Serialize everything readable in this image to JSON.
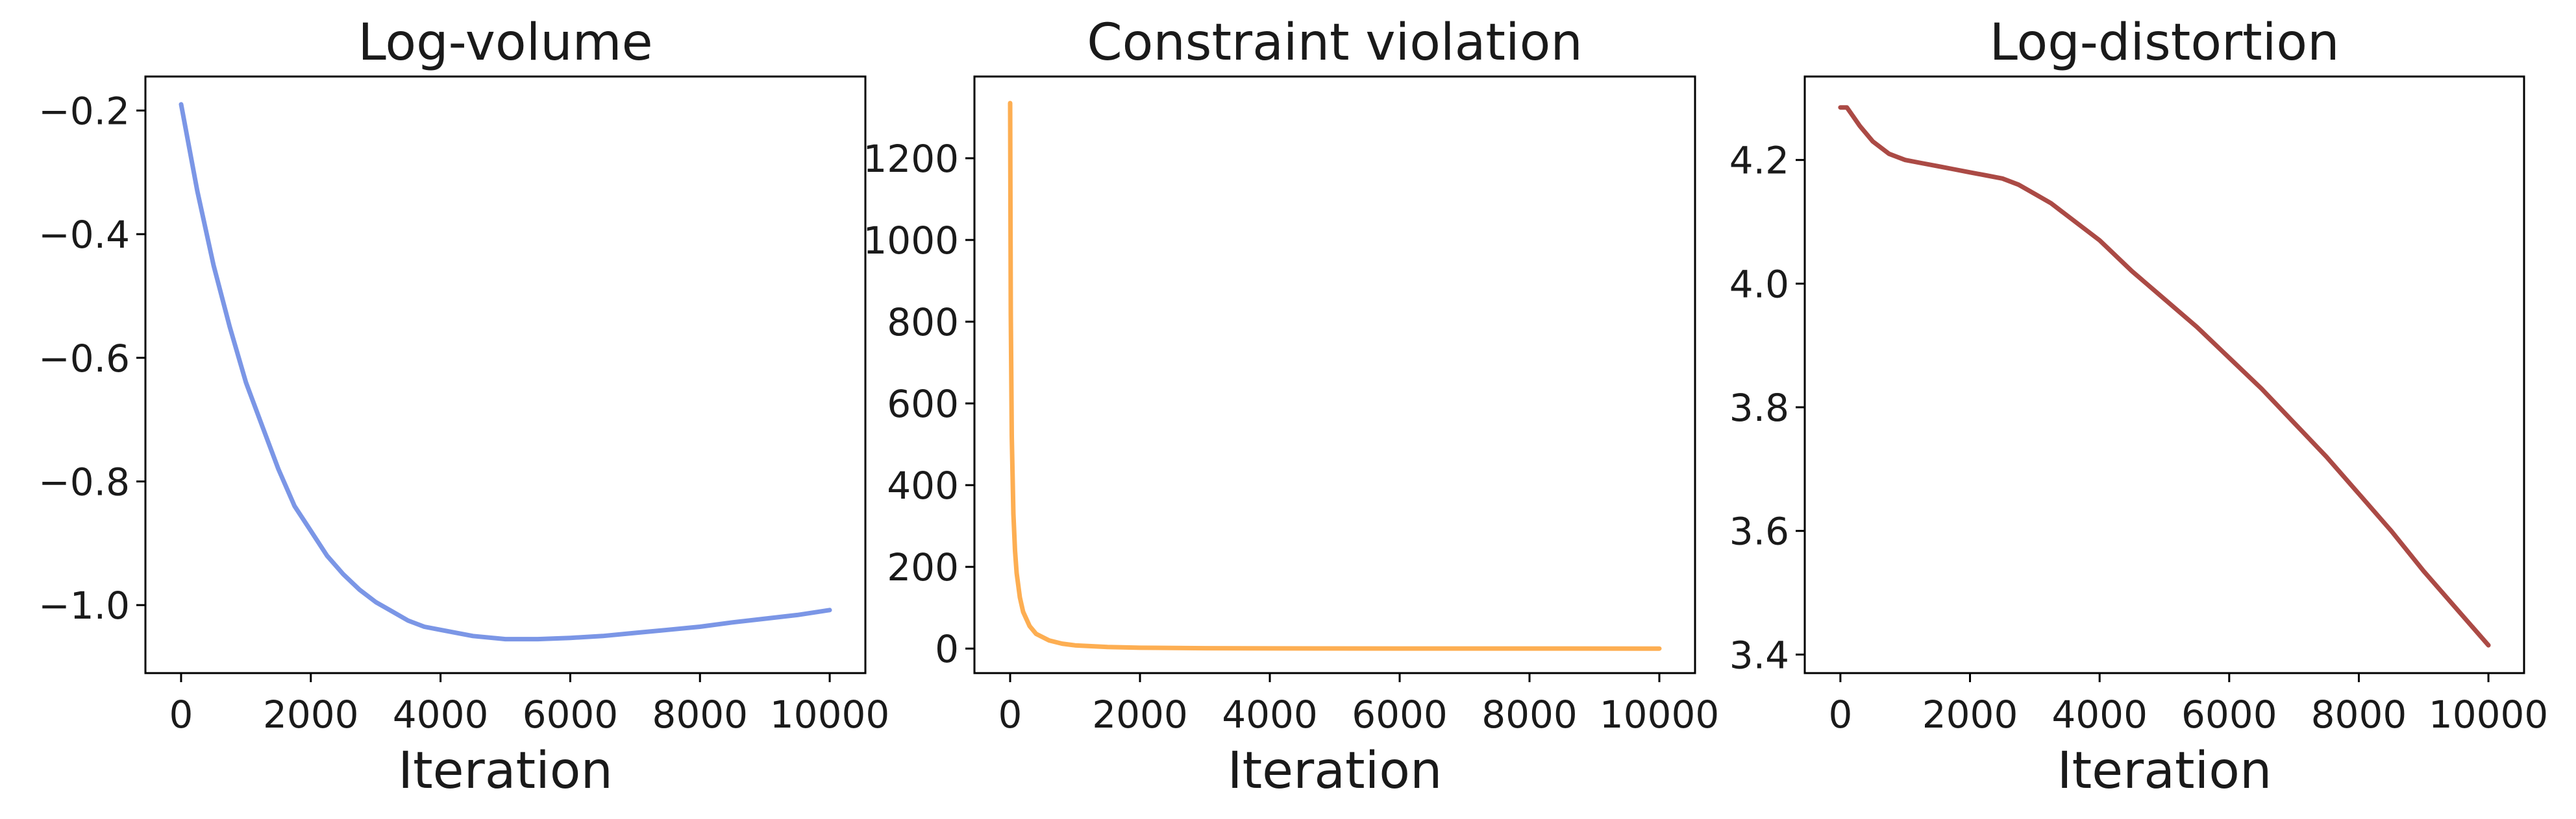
{
  "chart_data": [
    {
      "type": "line",
      "title": "Log-volume",
      "xlabel": "Iteration",
      "ylabel": "",
      "xlim": [
        -550,
        10550
      ],
      "ylim": [
        -1.11,
        -0.145
      ],
      "xticks": [
        0,
        2000,
        4000,
        6000,
        8000,
        10000
      ],
      "xtick_labels": [
        "0",
        "2000",
        "4000",
        "6000",
        "8000",
        "10000"
      ],
      "yticks": [
        -1.0,
        -0.8,
        -0.6,
        -0.4,
        -0.2
      ],
      "ytick_labels": [
        "−1.0",
        "−0.8",
        "−0.6",
        "−0.4",
        "−0.2"
      ],
      "grid": false,
      "series": [
        {
          "color": "#7b96e6",
          "x": [
            0,
            250,
            500,
            750,
            1000,
            1250,
            1500,
            1750,
            2000,
            2250,
            2500,
            2750,
            3000,
            3250,
            3500,
            3750,
            4000,
            4500,
            5000,
            5500,
            6000,
            6500,
            7000,
            7500,
            8000,
            8500,
            9000,
            9500,
            10000
          ],
          "y": [
            -0.19,
            -0.33,
            -0.45,
            -0.55,
            -0.64,
            -0.71,
            -0.78,
            -0.84,
            -0.88,
            -0.92,
            -0.95,
            -0.975,
            -0.995,
            -1.01,
            -1.025,
            -1.035,
            -1.04,
            -1.05,
            -1.055,
            -1.055,
            -1.053,
            -1.05,
            -1.045,
            -1.04,
            -1.035,
            -1.028,
            -1.022,
            -1.016,
            -1.008
          ]
        }
      ]
    },
    {
      "type": "line",
      "title": "Constraint violation",
      "xlabel": "Iteration",
      "ylabel": "",
      "xlim": [
        -550,
        10550
      ],
      "ylim": [
        -60,
        1400
      ],
      "xticks": [
        0,
        2000,
        4000,
        6000,
        8000,
        10000
      ],
      "xtick_labels": [
        "0",
        "2000",
        "4000",
        "6000",
        "8000",
        "10000"
      ],
      "yticks": [
        0,
        200,
        400,
        600,
        800,
        1000,
        1200
      ],
      "ytick_labels": [
        "0",
        "200",
        "400",
        "600",
        "800",
        "1000",
        "1200"
      ],
      "grid": false,
      "series": [
        {
          "color": "#fdae52",
          "x": [
            0,
            10,
            25,
            50,
            75,
            100,
            150,
            200,
            300,
            400,
            600,
            800,
            1000,
            1500,
            2000,
            3000,
            4000,
            6000,
            8000,
            10000
          ],
          "y": [
            1335,
            820,
            520,
            330,
            240,
            185,
            125,
            90,
            55,
            36,
            20,
            12,
            8,
            4,
            2,
            1,
            0.5,
            0.2,
            0.1,
            0.05
          ]
        }
      ]
    },
    {
      "type": "line",
      "title": "Log-distortion",
      "xlabel": "Iteration",
      "ylabel": "",
      "xlim": [
        -550,
        10550
      ],
      "ylim": [
        3.37,
        4.335
      ],
      "xticks": [
        0,
        2000,
        4000,
        6000,
        8000,
        10000
      ],
      "xtick_labels": [
        "0",
        "2000",
        "4000",
        "6000",
        "8000",
        "10000"
      ],
      "yticks": [
        3.4,
        3.6,
        3.8,
        4.0,
        4.2
      ],
      "ytick_labels": [
        "3.4",
        "3.6",
        "3.8",
        "4.0",
        "4.2"
      ],
      "grid": false,
      "series": [
        {
          "color": "#ab4a45",
          "x": [
            0,
            100,
            200,
            300,
            500,
            750,
            1000,
            1250,
            1500,
            1750,
            2000,
            2250,
            2500,
            2750,
            3000,
            3250,
            3500,
            4000,
            4500,
            5000,
            5500,
            6000,
            6500,
            7000,
            7500,
            8000,
            8500,
            9000,
            9500,
            10000
          ],
          "y": [
            4.285,
            4.285,
            4.27,
            4.255,
            4.23,
            4.21,
            4.2,
            4.195,
            4.19,
            4.185,
            4.18,
            4.175,
            4.17,
            4.16,
            4.145,
            4.13,
            4.11,
            4.07,
            4.02,
            3.975,
            3.93,
            3.88,
            3.83,
            3.775,
            3.72,
            3.66,
            3.6,
            3.535,
            3.475,
            3.415
          ]
        }
      ]
    }
  ]
}
